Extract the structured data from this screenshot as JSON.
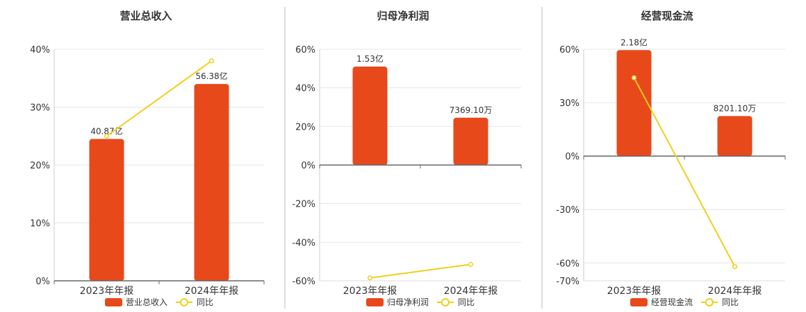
{
  "colors": {
    "bar": "#e8491b",
    "line": "#f0cf1a",
    "marker_fill": "#ffffff"
  },
  "chart_data": [
    {
      "type": "bar",
      "title": "营业总收入",
      "categories": [
        "2023年年报",
        "2024年年报"
      ],
      "series": [
        {
          "name": "营业总收入",
          "type": "bar",
          "values": [
            24.5,
            34.0
          ],
          "labels": [
            "40.87亿",
            "56.38亿"
          ]
        },
        {
          "name": "同比",
          "type": "line",
          "values": [
            25.0,
            38.0
          ]
        }
      ],
      "ylim": [
        0,
        40
      ],
      "yticks": [
        0,
        10,
        20,
        30,
        40
      ],
      "ytick_labels": [
        "0%",
        "10%",
        "20%",
        "30%",
        "40%"
      ],
      "grid": true,
      "legend": "bottom-center"
    },
    {
      "type": "bar",
      "title": "归母净利润",
      "categories": [
        "2023年年报",
        "2024年年报"
      ],
      "series": [
        {
          "name": "归母净利润",
          "type": "bar",
          "values": [
            51.0,
            24.5
          ],
          "labels": [
            "1.53亿",
            "7369.10万"
          ]
        },
        {
          "name": "同比",
          "type": "line",
          "values": [
            -58.5,
            -51.5
          ]
        }
      ],
      "ylim": [
        -60,
        60
      ],
      "yticks": [
        -60,
        -40,
        -20,
        0,
        20,
        40,
        60
      ],
      "ytick_labels": [
        "-60%",
        "-40%",
        "-20%",
        "0%",
        "20%",
        "40%",
        "60%"
      ],
      "grid": true,
      "legend": "bottom-center"
    },
    {
      "type": "bar",
      "title": "经营现金流",
      "categories": [
        "2023年年报",
        "2024年年报"
      ],
      "series": [
        {
          "name": "经营现金流",
          "type": "bar",
          "values": [
            59.5,
            22.5
          ],
          "labels": [
            "2.18亿",
            "8201.10万"
          ]
        },
        {
          "name": "同比",
          "type": "line",
          "values": [
            44.0,
            -62.0
          ]
        }
      ],
      "ylim": [
        -70,
        60
      ],
      "yticks": [
        -70,
        -60,
        -30,
        0,
        30,
        60
      ],
      "ytick_labels": [
        "-70%",
        "-60%",
        "-30%",
        "0%",
        "30%",
        "60%"
      ],
      "grid": true,
      "legend": "bottom-center"
    }
  ]
}
